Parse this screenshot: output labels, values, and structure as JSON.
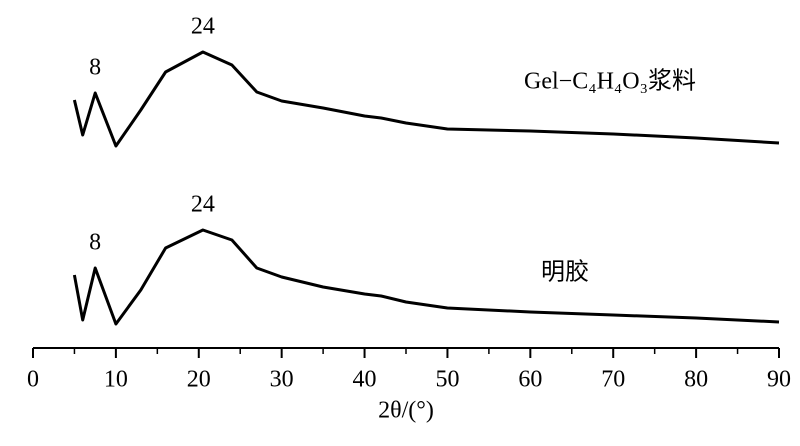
{
  "chart_data": {
    "type": "line",
    "xlabel": "2θ/(°)",
    "xlim": [
      0,
      90
    ],
    "xticks": [
      0,
      10,
      20,
      30,
      40,
      50,
      60,
      70,
      80,
      90
    ],
    "xminorticks": [
      5,
      15,
      25,
      35,
      45,
      55,
      65,
      75,
      85
    ],
    "ylim": [
      0,
      310
    ],
    "x": [
      5,
      6,
      7.5,
      10,
      13,
      16,
      20.5,
      24,
      27,
      30,
      35,
      40,
      42,
      45,
      50,
      60,
      70,
      80,
      90
    ],
    "series": [
      {
        "name": "Gel−C₄H₄O₃浆料",
        "color": "#000000",
        "peak_labels": [
          "8",
          "24"
        ],
        "values": [
          248,
          213,
          255,
          202,
          238,
          276,
          296,
          283,
          256,
          247,
          240,
          232,
          230,
          225,
          219,
          217,
          214,
          210,
          205
        ]
      },
      {
        "name": "明胶",
        "color": "#000000",
        "peak_labels": [
          "8",
          "24"
        ],
        "values": [
          73,
          28,
          80,
          24,
          58,
          100,
          118,
          108,
          80,
          71,
          61,
          54,
          52,
          46,
          40,
          36,
          33,
          30,
          26
        ]
      }
    ]
  }
}
